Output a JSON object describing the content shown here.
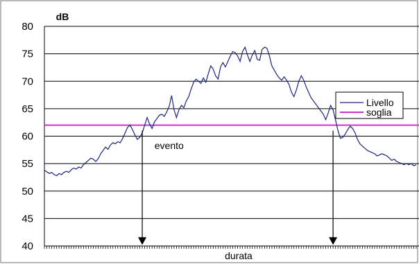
{
  "chart_data": {
    "type": "line",
    "ylabel": "dB",
    "xlabel": "durata",
    "ylim": [
      40,
      80
    ],
    "yticks": [
      "40",
      "45",
      "50",
      "55",
      "60",
      "65",
      "70",
      "75",
      "80"
    ],
    "grid": true,
    "legend": {
      "placement": "right",
      "entries": [
        "Livello",
        "soglia"
      ]
    },
    "colors": {
      "livello": "#1a237e",
      "soglia": "#cc33cc",
      "grid": "#000000"
    },
    "series": [
      {
        "name": "Livello",
        "values": [
          53.8,
          53.5,
          53.2,
          53.4,
          53.0,
          52.8,
          53.2,
          53.0,
          53.4,
          53.6,
          53.4,
          53.9,
          54.2,
          54.0,
          54.4,
          54.2,
          54.8,
          55.2,
          55.6,
          56.0,
          55.8,
          55.4,
          55.9,
          56.8,
          57.4,
          58.0,
          57.6,
          58.4,
          58.8,
          58.6,
          59.0,
          58.8,
          59.6,
          60.6,
          61.6,
          62.0,
          61.2,
          60.2,
          59.4,
          59.8,
          60.6,
          62.0,
          63.4,
          62.2,
          61.4,
          62.6,
          63.2,
          63.8,
          64.0,
          63.6,
          64.4,
          65.4,
          67.4,
          64.8,
          63.4,
          64.8,
          65.6,
          65.2,
          66.4,
          67.2,
          68.6,
          69.8,
          70.4,
          70.0,
          69.6,
          70.6,
          69.8,
          71.4,
          72.8,
          72.2,
          71.0,
          70.4,
          72.6,
          73.4,
          72.6,
          73.6,
          74.6,
          75.4,
          75.2,
          74.6,
          73.6,
          75.4,
          76.2,
          74.8,
          73.6,
          74.8,
          75.6,
          74.0,
          73.8,
          75.8,
          76.2,
          76.0,
          74.6,
          72.8,
          72.0,
          71.2,
          70.6,
          70.2,
          70.8,
          70.2,
          69.4,
          68.0,
          67.2,
          68.4,
          70.0,
          71.0,
          70.2,
          69.0,
          68.0,
          67.0,
          66.4,
          65.8,
          65.2,
          64.6,
          64.0,
          63.0,
          64.2,
          65.6,
          64.8,
          63.0,
          61.0,
          59.6,
          59.8,
          60.4,
          61.2,
          61.8,
          61.4,
          60.6,
          59.4,
          58.6,
          58.2,
          57.8,
          57.4,
          57.2,
          57.0,
          56.8,
          56.4,
          56.6,
          56.8,
          56.6,
          56.4,
          56.0,
          55.6,
          55.8,
          55.4,
          55.2,
          55.0,
          54.8,
          55.0,
          54.8,
          55.0,
          54.6,
          54.8
        ]
      },
      {
        "name": "soglia",
        "values": [
          62.0,
          62.0
        ]
      }
    ],
    "annotations": [
      {
        "text": "evento",
        "x_index": 51,
        "y": 60.2
      }
    ],
    "arrows": [
      {
        "x_index": 40,
        "y_from": 61.0,
        "y_to": 40.2
      },
      {
        "x_index": 118,
        "y_from": 61.0,
        "y_to": 40.2
      }
    ]
  }
}
